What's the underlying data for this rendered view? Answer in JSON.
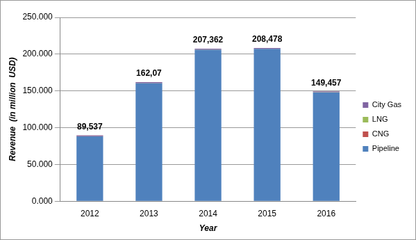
{
  "chart_data": {
    "type": "bar",
    "stacked": true,
    "categories": [
      "2012",
      "2013",
      "2014",
      "2015",
      "2016"
    ],
    "series": [
      {
        "name": "Pipeline",
        "color": "#4f81bd",
        "values": [
          88.137,
          160.67,
          205.962,
          207.078,
          148.057
        ]
      },
      {
        "name": "CNG",
        "color": "#c0504d",
        "values": [
          0.3,
          0.3,
          0.3,
          0.3,
          0.3
        ]
      },
      {
        "name": "LNG",
        "color": "#9bbb59",
        "values": [
          0.1,
          0.1,
          0.1,
          0.1,
          0.1
        ]
      },
      {
        "name": "City Gas",
        "color": "#8064a2",
        "values": [
          1.0,
          1.0,
          1.0,
          1.0,
          1.0
        ]
      }
    ],
    "totals": [
      89.537,
      162.07,
      207.362,
      208.478,
      149.457
    ],
    "total_labels": [
      "89,537",
      "162,07",
      "207,362",
      "208,478",
      "149,457"
    ],
    "xlabel": "Year",
    "ylabel": "Revenue  (in million  USD)",
    "ylim": [
      0,
      250
    ],
    "yticks": [
      {
        "value": 0,
        "label": "0.000"
      },
      {
        "value": 50,
        "label": "50.000"
      },
      {
        "value": 100,
        "label": "100.000"
      },
      {
        "value": 150,
        "label": "150.000"
      },
      {
        "value": 200,
        "label": "200.000"
      },
      {
        "value": 250,
        "label": "250.000"
      }
    ],
    "grid": true,
    "legend": "right"
  }
}
